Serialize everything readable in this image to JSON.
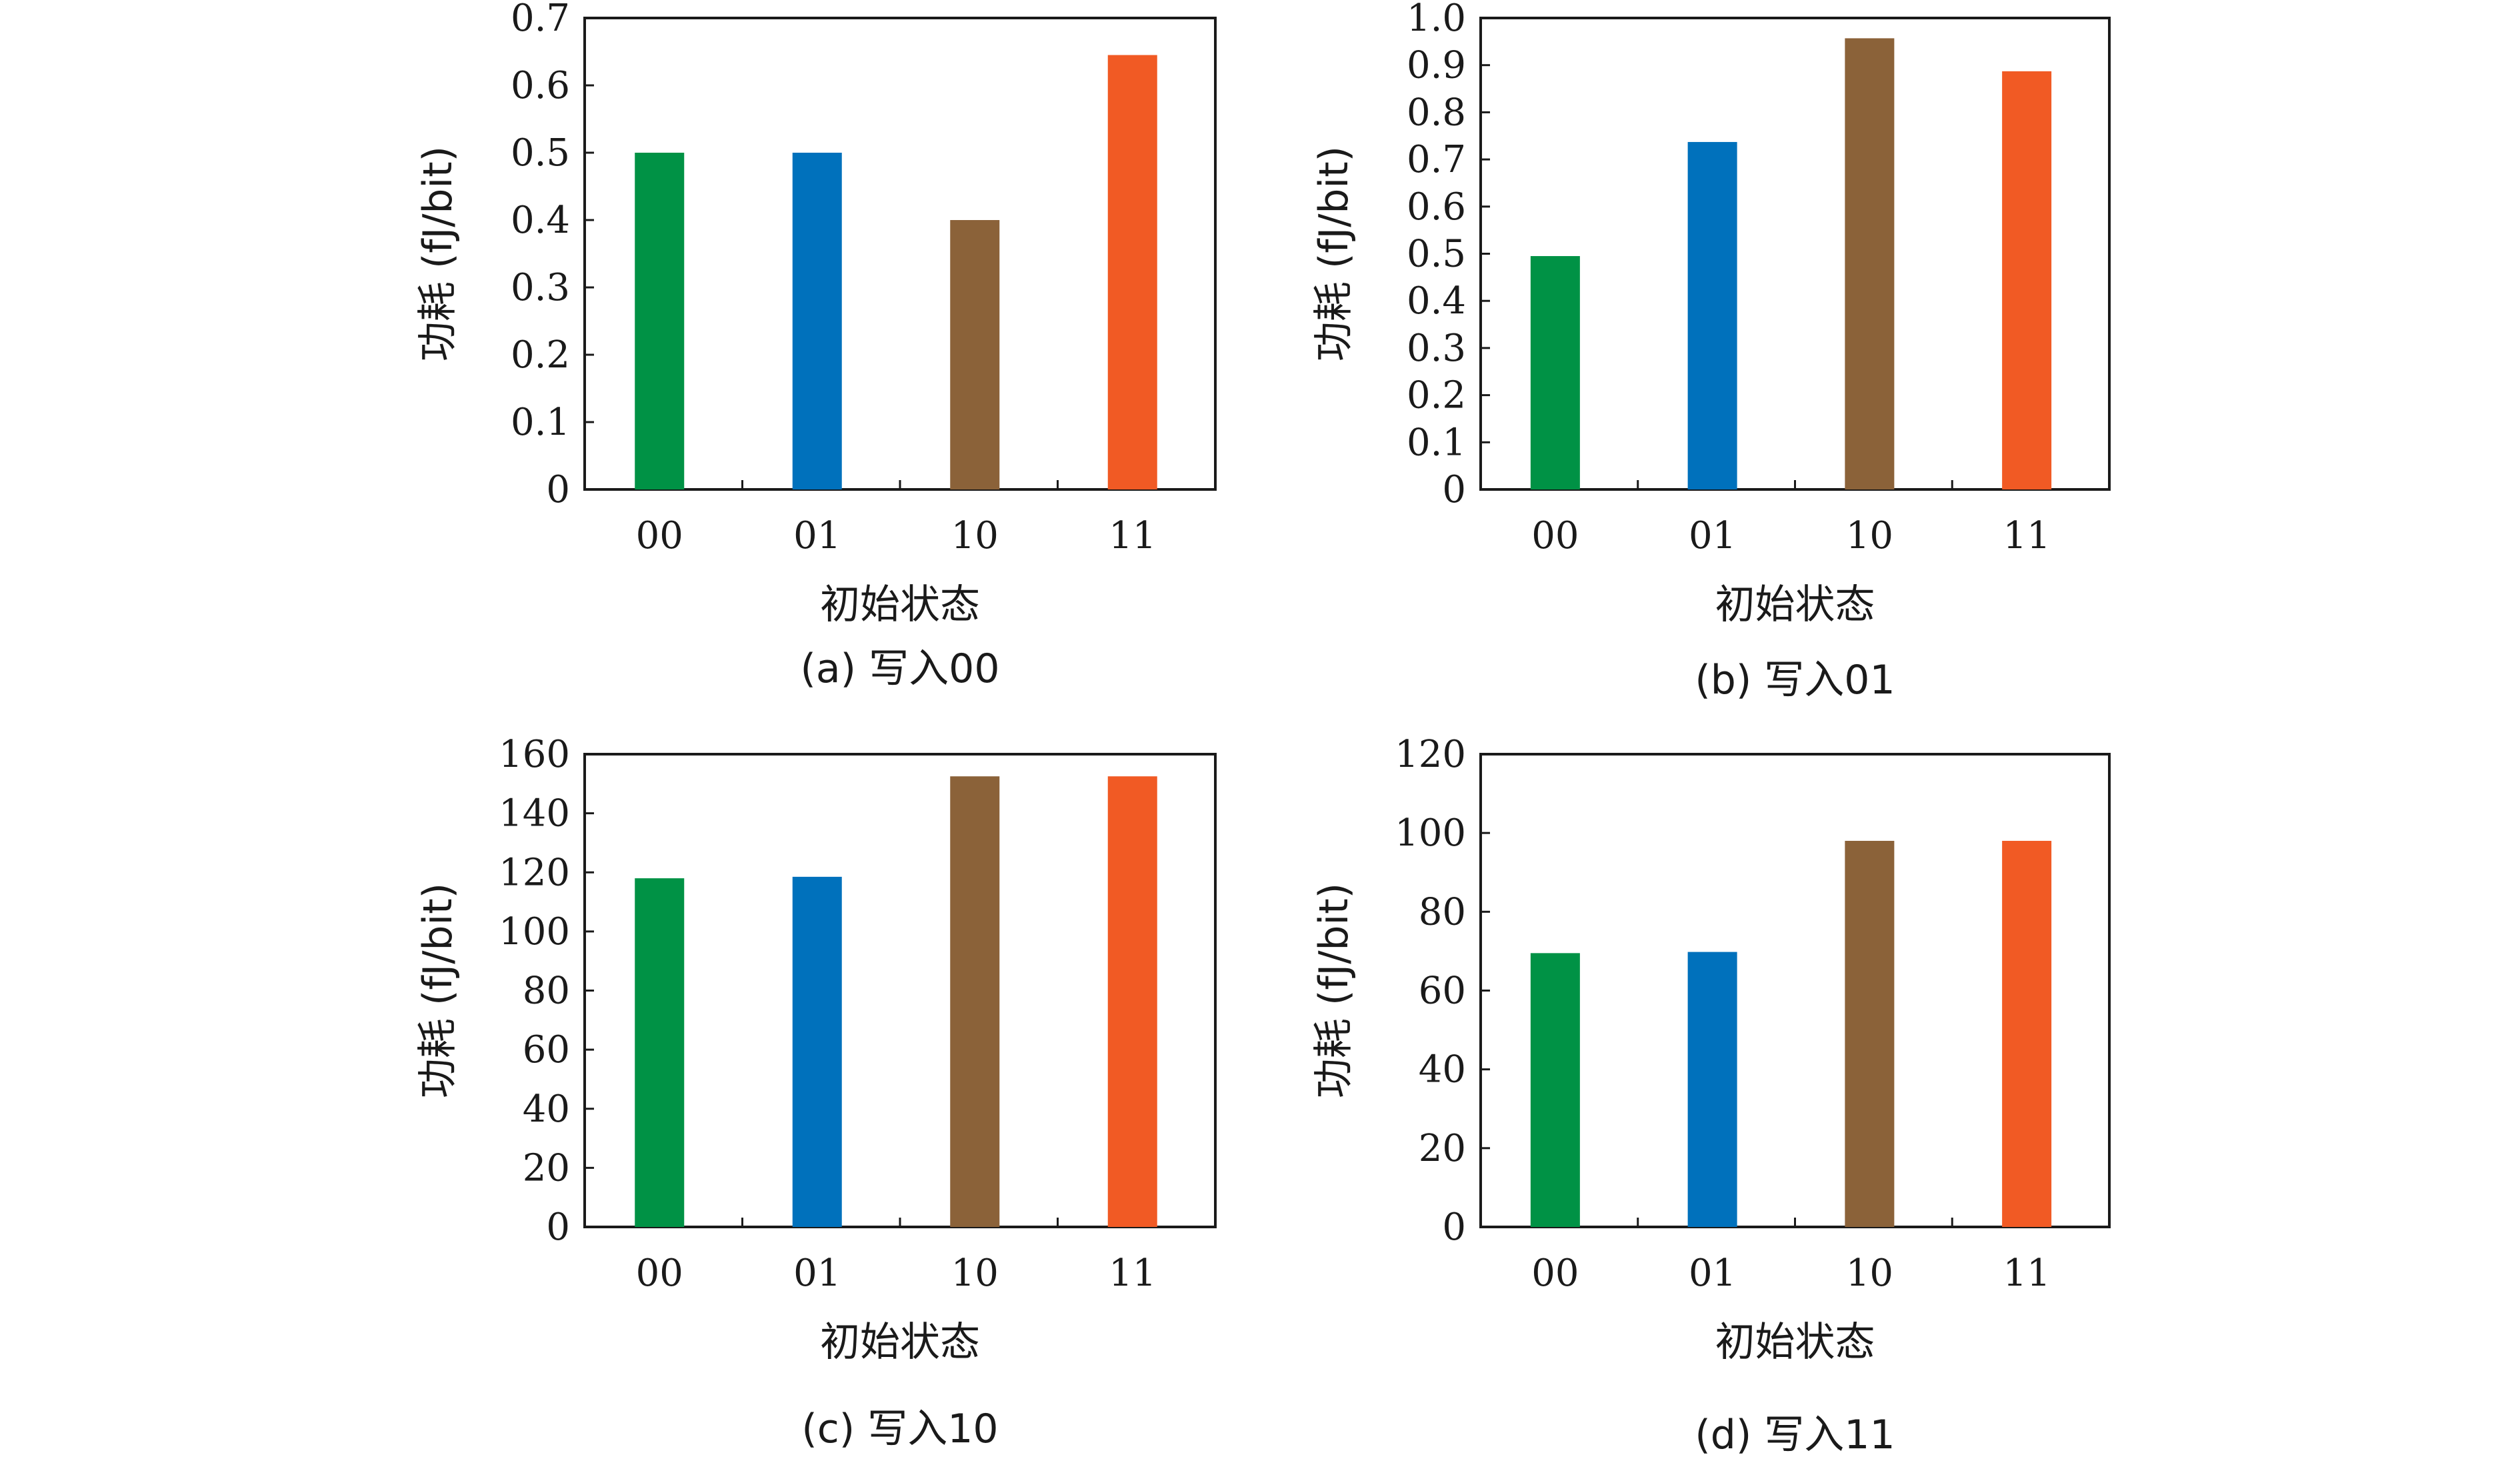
{
  "figure": {
    "charts": [
      {
        "caption": "(a) 写入00"
      },
      {
        "caption": "(b) 写入01"
      },
      {
        "caption": "(c) 写入10"
      },
      {
        "caption": "(d) 写入11"
      }
    ]
  },
  "bar_colors": [
    "#009245",
    "#0071bc",
    "#8b6239",
    "#f15a24"
  ],
  "chart_data": [
    {
      "type": "bar",
      "title": "",
      "caption": "(a) 写入00",
      "xlabel": "初始状态",
      "ylabel": "功耗 (fJ/bit)",
      "categories": [
        "00",
        "01",
        "10",
        "11"
      ],
      "values": [
        0.5,
        0.5,
        0.4,
        0.645
      ],
      "ylim": [
        0,
        0.7
      ],
      "yticks": [
        "0",
        "0.1",
        "0.2",
        "0.3",
        "0.4",
        "0.5",
        "0.6",
        "0.7"
      ],
      "grid": false,
      "legend": "none"
    },
    {
      "type": "bar",
      "title": "",
      "caption": "(b) 写入01",
      "xlabel": "初始状态",
      "ylabel": "功耗 (fJ/bit)",
      "categories": [
        "00",
        "01",
        "10",
        "11"
      ],
      "values": [
        0.495,
        0.737,
        0.957,
        0.887
      ],
      "ylim": [
        0,
        1.0
      ],
      "yticks": [
        "0",
        "0.1",
        "0.2",
        "0.3",
        "0.4",
        "0.5",
        "0.6",
        "0.7",
        "0.8",
        "0.9",
        "1.0"
      ],
      "grid": false,
      "legend": "none"
    },
    {
      "type": "bar",
      "title": "",
      "caption": "(c) 写入10",
      "xlabel": "初始状态",
      "ylabel": "功耗 (fJ/bit)",
      "categories": [
        "00",
        "01",
        "10",
        "11"
      ],
      "values": [
        118,
        118.5,
        152.5,
        152.5
      ],
      "ylim": [
        0,
        160
      ],
      "yticks": [
        "0",
        "20",
        "40",
        "60",
        "80",
        "100",
        "120",
        "140",
        "160"
      ],
      "grid": false,
      "legend": "none"
    },
    {
      "type": "bar",
      "title": "",
      "caption": "(d) 写入11",
      "xlabel": "初始状态",
      "ylabel": "功耗 (fJ/bit)",
      "categories": [
        "00",
        "01",
        "10",
        "11"
      ],
      "values": [
        69.5,
        69.8,
        98,
        98
      ],
      "ylim": [
        0,
        120
      ],
      "yticks": [
        "0",
        "20",
        "40",
        "60",
        "80",
        "100",
        "120"
      ],
      "grid": false,
      "legend": "none"
    }
  ]
}
